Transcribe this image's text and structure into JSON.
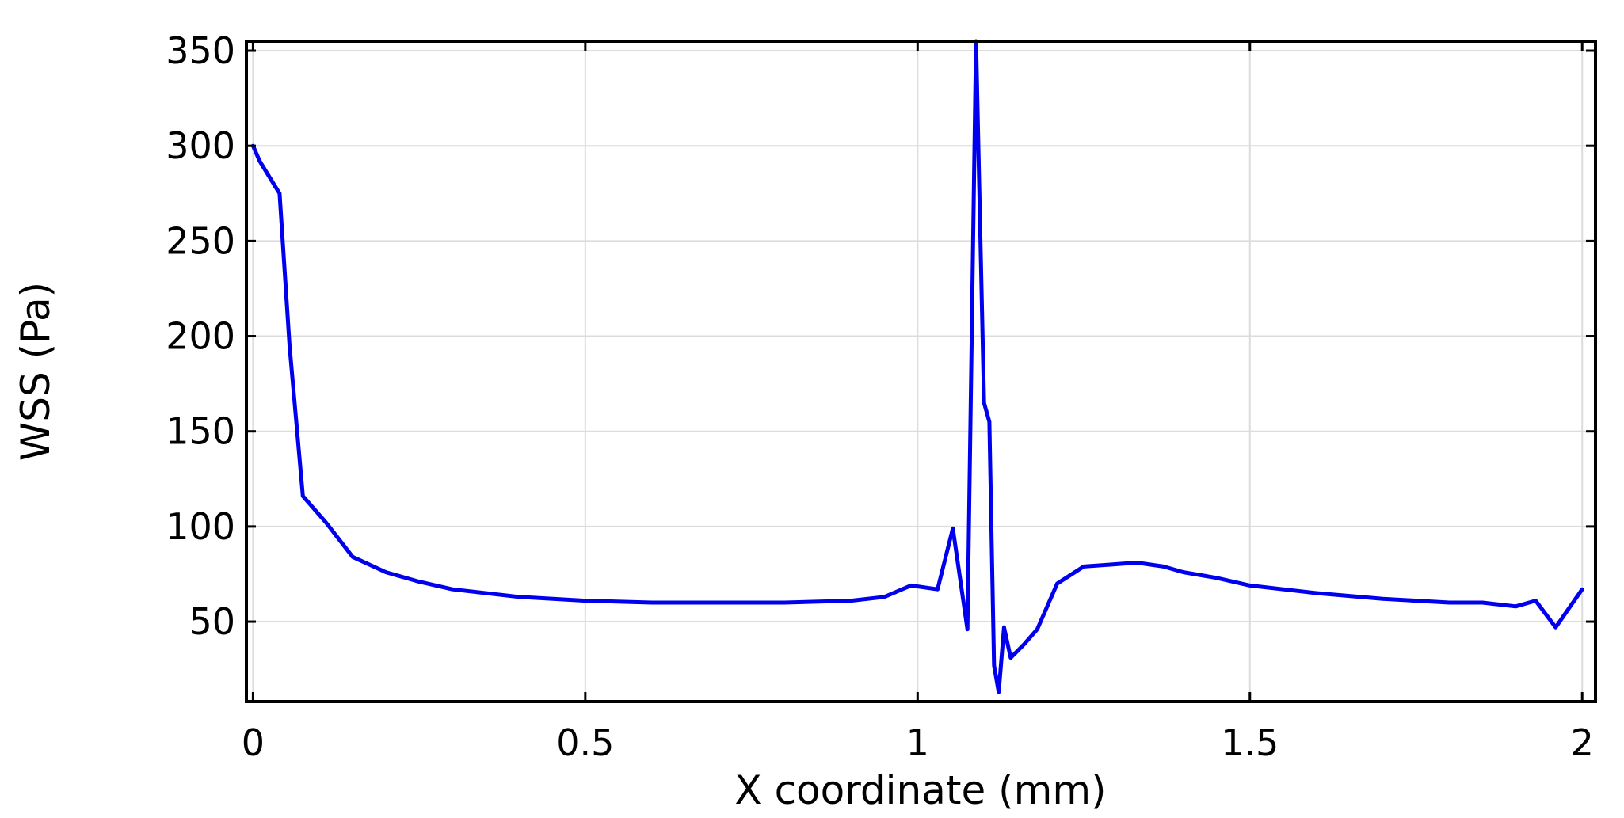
{
  "chart_data": {
    "type": "line",
    "title": "",
    "xlabel": "X coordinate (mm)",
    "ylabel": "WSS (Pa)",
    "xlim": [
      -0.01,
      2.02
    ],
    "ylim": [
      8,
      355
    ],
    "xticks": [
      0,
      0.5,
      1,
      1.5,
      2
    ],
    "xtick_labels": [
      "0",
      "0.5",
      "1",
      "1.5",
      "2"
    ],
    "yticks": [
      50,
      100,
      150,
      200,
      250,
      300,
      350
    ],
    "ytick_labels": [
      "50",
      "100",
      "150",
      "200",
      "250",
      "300",
      "350"
    ],
    "grid": true,
    "legend": "none",
    "series": [
      {
        "color": "#0000ee",
        "x": [
          0,
          0.01,
          0.04,
          0.055,
          0.075,
          0.11,
          0.15,
          0.2,
          0.25,
          0.3,
          0.4,
          0.5,
          0.6,
          0.7,
          0.8,
          0.9,
          0.95,
          0.99,
          1.03,
          1.053,
          1.075,
          1.085,
          1.088,
          1.092,
          1.1,
          1.108,
          1.115,
          1.122,
          1.13,
          1.14,
          1.16,
          1.18,
          1.21,
          1.25,
          1.29,
          1.33,
          1.37,
          1.4,
          1.45,
          1.5,
          1.55,
          1.6,
          1.7,
          1.8,
          1.85,
          1.9,
          1.93,
          1.96,
          2.0
        ],
        "y": [
          300,
          292,
          275,
          195,
          116,
          102,
          84,
          76,
          71,
          67,
          63,
          61,
          60,
          60,
          60,
          61,
          63,
          69,
          67,
          99,
          46,
          285,
          355,
          290,
          165,
          155,
          27,
          13,
          47,
          31,
          38,
          46,
          70,
          79,
          80,
          81,
          79,
          76,
          73,
          69,
          67,
          65,
          62,
          60,
          60,
          58,
          61,
          47,
          67
        ]
      }
    ]
  }
}
